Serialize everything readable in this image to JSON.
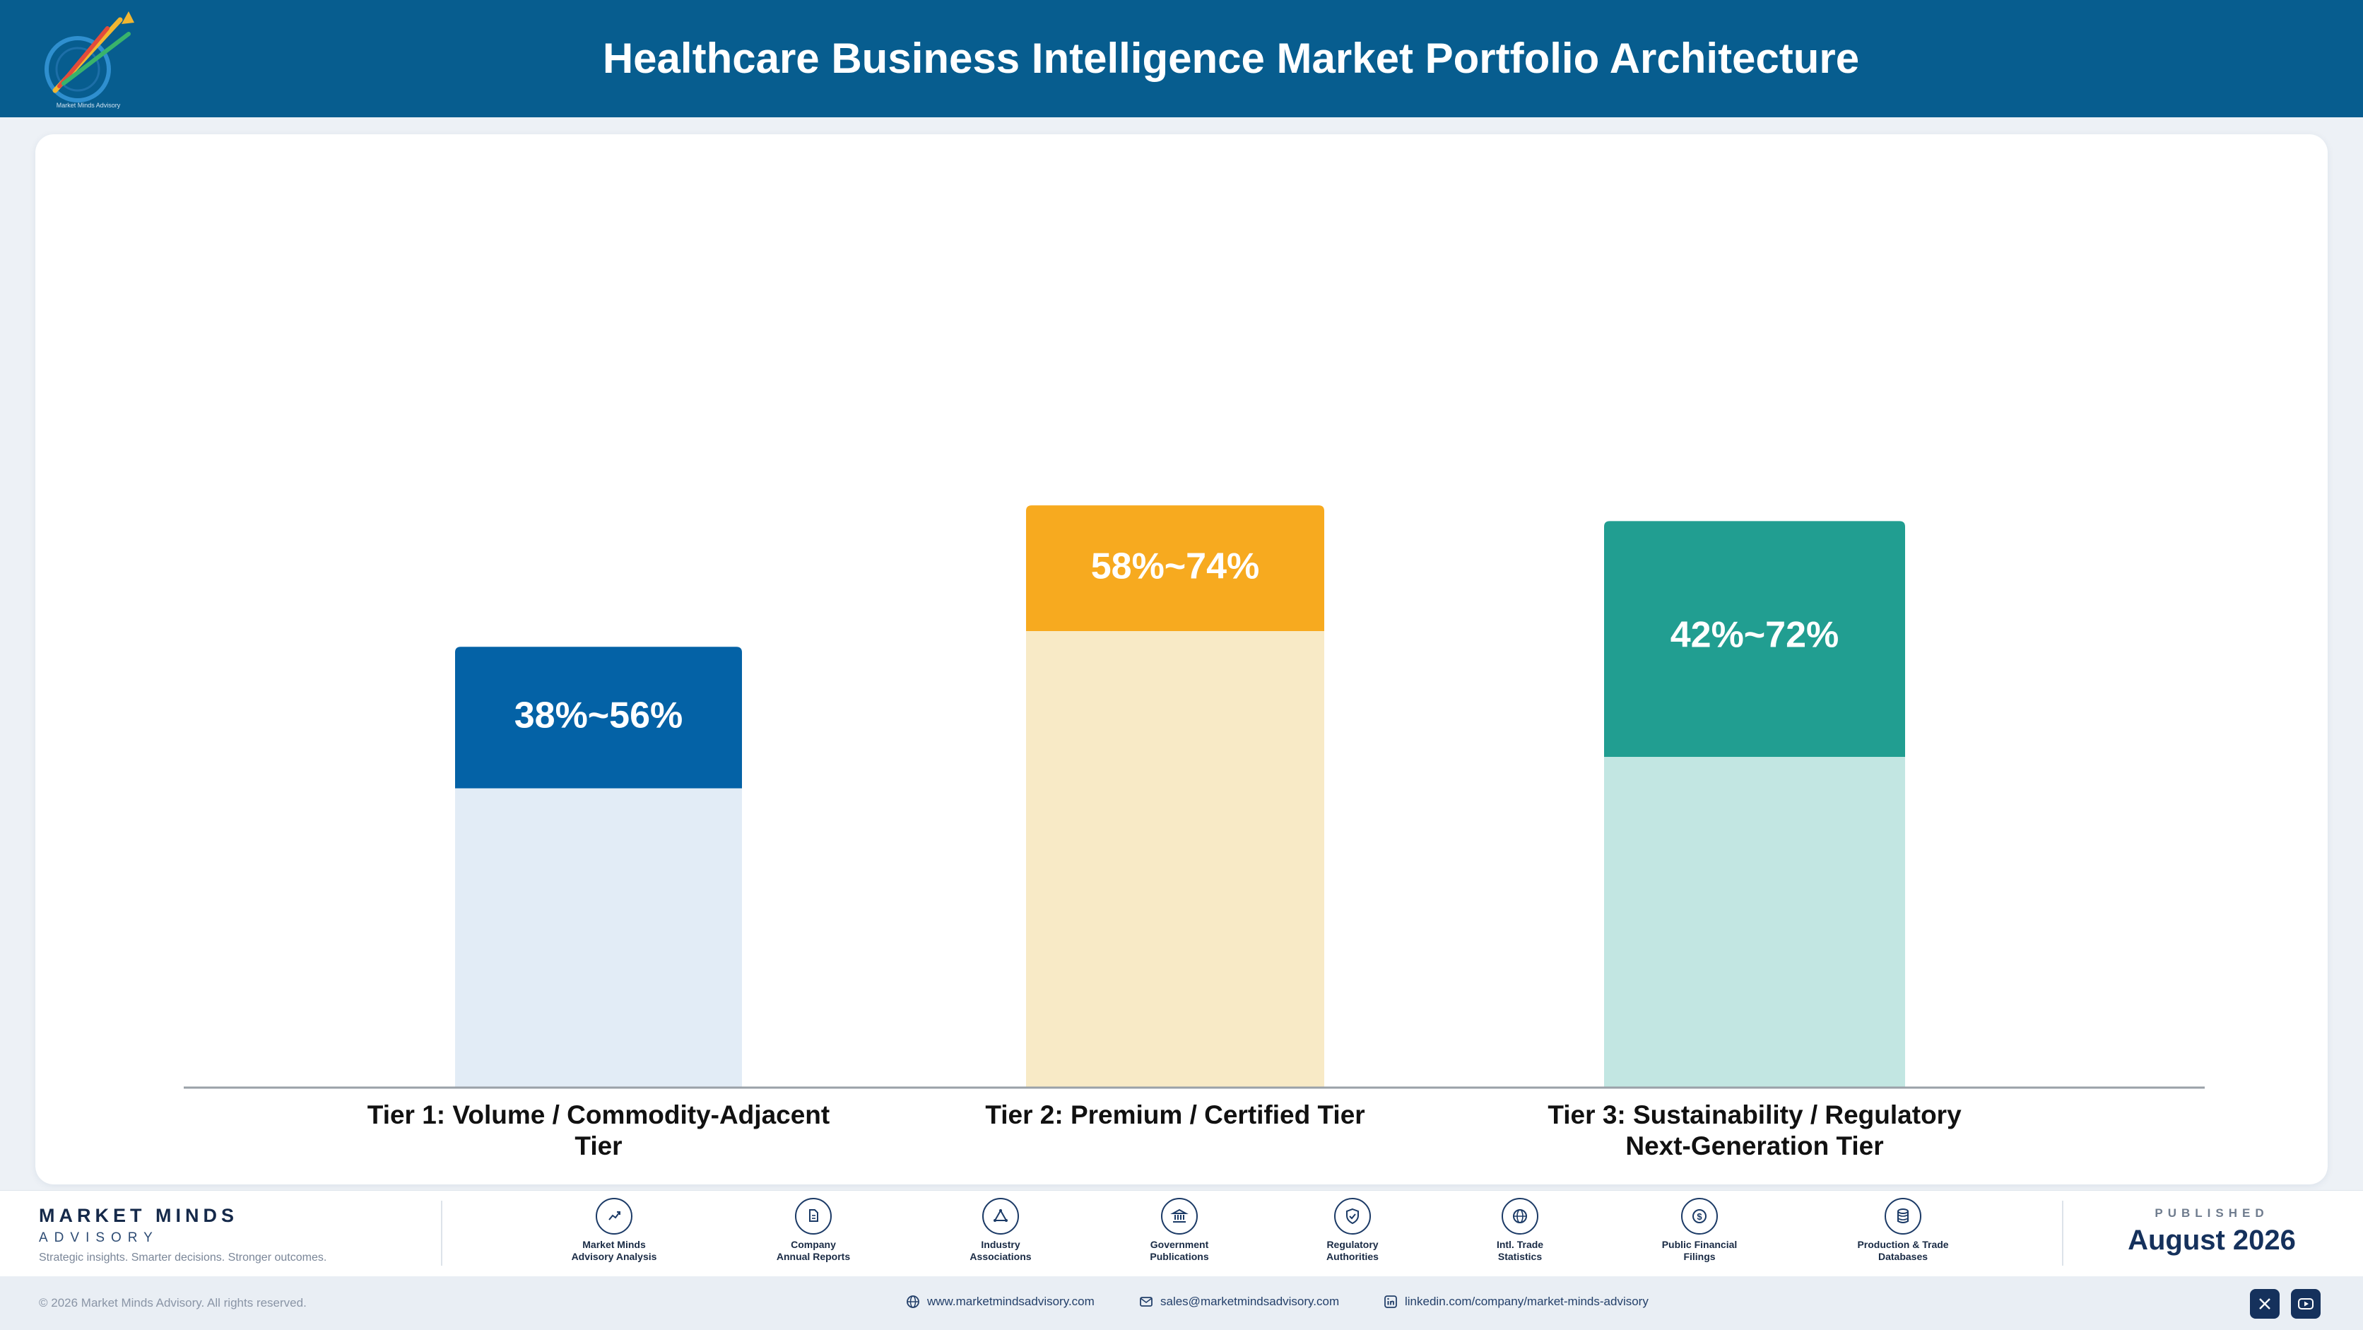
{
  "header": {
    "title": "Healthcare Business Intelligence Market Portfolio Architecture",
    "logo_text": "Market Minds Advisory"
  },
  "chart_data": {
    "type": "bar",
    "title": "",
    "xlabel": "",
    "ylabel": "",
    "categories": [
      "Tier 1: Volume / Commodity-Adjacent Tier",
      "Tier 2: Premium / Certified Tier",
      "Tier 3: Sustainability / Regulatory Next-Generation Tier"
    ],
    "ranges": [
      {
        "label": "38%~56%",
        "low": 38,
        "high": 56
      },
      {
        "label": "58%~74%",
        "low": 58,
        "high": 74
      },
      {
        "label": "42%~72%",
        "low": 42,
        "high": 72
      }
    ],
    "colors": {
      "highlight": [
        "#0462a6",
        "#f7aa1f",
        "#219e91"
      ],
      "base": [
        "#e2ecf6",
        "#f8eac6",
        "#c2e6e2"
      ],
      "axis": "#9aa1a8"
    },
    "grid": false,
    "legend": "none"
  },
  "footer": {
    "brand_name": "MARKET MINDS",
    "brand_sub": "ADVISORY",
    "tagline": "Strategic insights. Smarter decisions. Stronger outcomes.",
    "sources": [
      {
        "label": "Market Minds\nAdvisory Analysis",
        "icon": "trend-chart-icon"
      },
      {
        "label": "Company\nAnnual Reports",
        "icon": "document-icon"
      },
      {
        "label": "Industry\nAssociations",
        "icon": "network-icon"
      },
      {
        "label": "Government\nPublications",
        "icon": "government-building-icon"
      },
      {
        "label": "Regulatory\nAuthorities",
        "icon": "shield-check-icon"
      },
      {
        "label": "Intl. Trade\nStatistics",
        "icon": "globe-icon"
      },
      {
        "label": "Public Financial\nFilings",
        "icon": "dollar-coin-icon"
      },
      {
        "label": "Production & Trade\nDatabases",
        "icon": "database-icon"
      }
    ],
    "published_label": "PUBLISHED",
    "published_date": "August 2026",
    "copyright": "© 2026 Market Minds Advisory. All rights reserved.",
    "website": "www.marketmindsadvisory.com",
    "email": "sales@marketmindsadvisory.com",
    "linkedin": "linkedin.com/company/market-minds-advisory",
    "social": [
      "x-icon",
      "youtube-icon"
    ]
  }
}
